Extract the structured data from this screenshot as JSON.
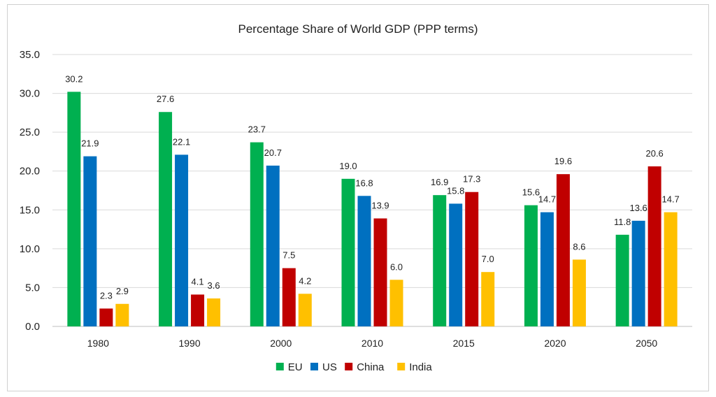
{
  "chart_data": {
    "type": "bar",
    "title": "Percentage Share of World GDP (PPP terms)",
    "categories": [
      "1980",
      "1990",
      "2000",
      "2010",
      "2015",
      "2020",
      "2050"
    ],
    "series": [
      {
        "name": "EU",
        "color": "#00b050",
        "values": [
          30.2,
          27.6,
          23.7,
          19.0,
          16.9,
          15.6,
          11.8
        ]
      },
      {
        "name": "US",
        "color": "#0070c0",
        "values": [
          21.9,
          22.1,
          20.7,
          16.8,
          15.8,
          14.7,
          13.6
        ]
      },
      {
        "name": "China",
        "color": "#c00000",
        "values": [
          2.3,
          4.1,
          7.5,
          13.9,
          17.3,
          19.6,
          20.6
        ]
      },
      {
        "name": "India",
        "color": "#ffc000",
        "values": [
          2.9,
          3.6,
          4.2,
          6.0,
          7.0,
          8.6,
          14.7
        ]
      }
    ],
    "y_ticks": [
      "0.0",
      "5.0",
      "10.0",
      "15.0",
      "20.0",
      "25.0",
      "30.0",
      "35.0"
    ],
    "ylim": [
      0,
      35
    ],
    "grid": true,
    "legend_position": "bottom",
    "xlabel": "",
    "ylabel": ""
  }
}
